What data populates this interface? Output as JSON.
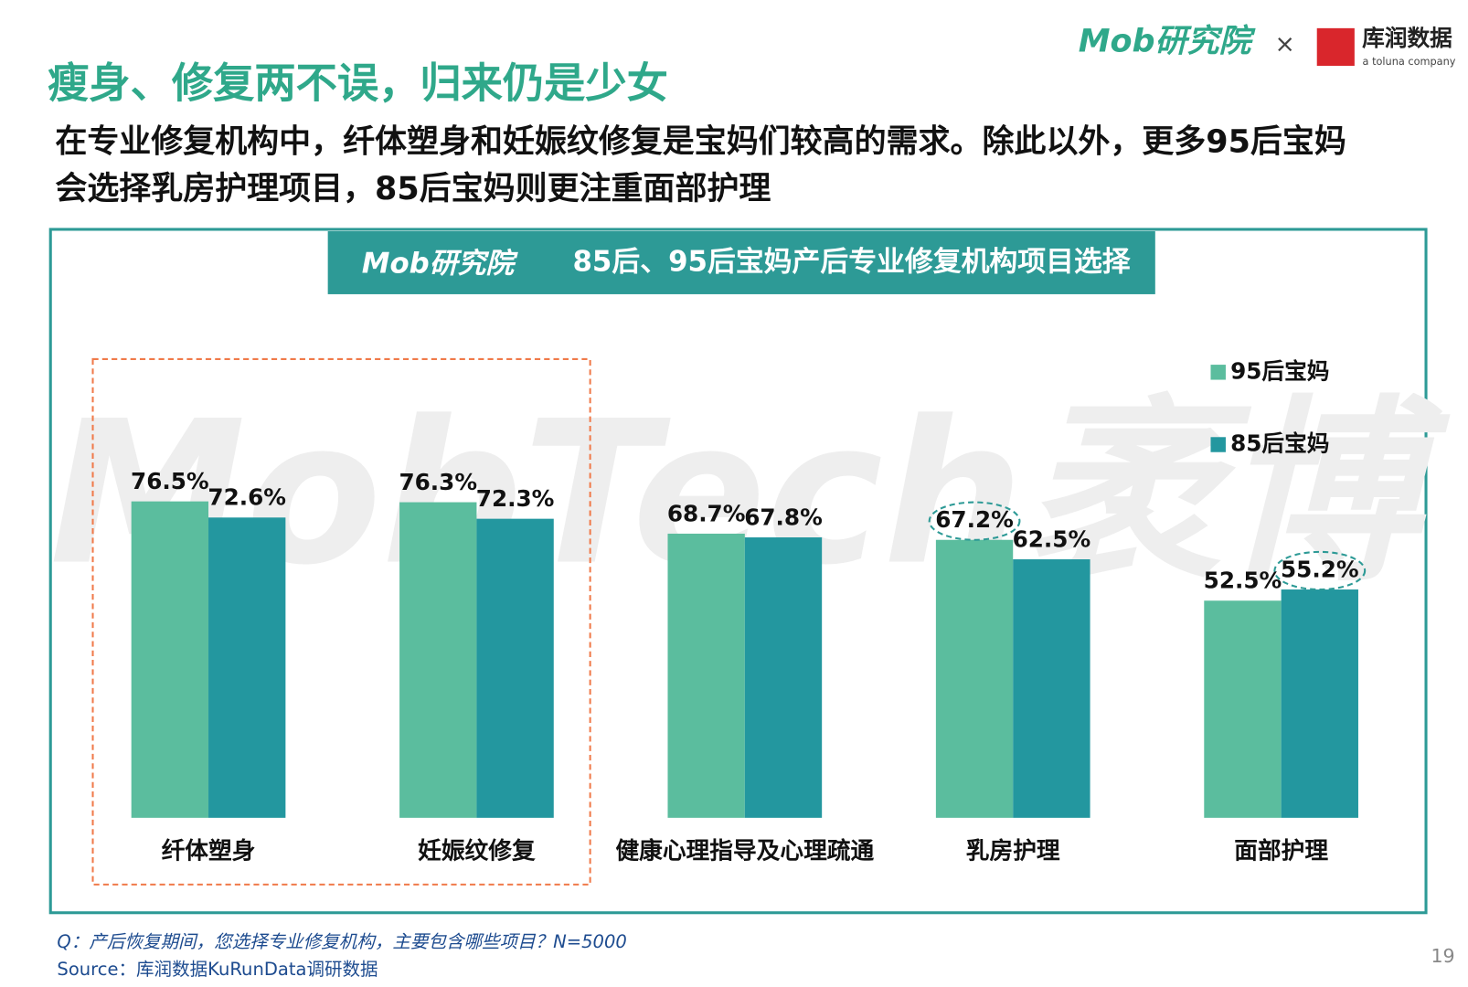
{
  "header": {
    "title": "瘦身、修复两不误，归来仍是少女",
    "subtitle_lines": [
      "在专业修复机构中，纤体塑身和妊娠纹修复是宝妈们较高的需求。除此以外，更多95后宝妈",
      "会选择乳房护理项目，85后宝妈则更注重面部护理"
    ],
    "logo_left": "Mob研究院",
    "logo_sep": "×",
    "logo_right": "库润数据",
    "logo_right_sub": "a toluna company"
  },
  "chart_data": {
    "type": "bar",
    "brand": "Mob研究院",
    "title": "85后、95后宝妈产后专业修复机构项目选择",
    "watermark": "MobTech袤博",
    "categories": [
      "纤体塑身",
      "妊娠纹修复",
      "健康心理指导及心理疏通",
      "乳房护理",
      "面部护理"
    ],
    "series": [
      {
        "name": "95后宝妈",
        "color": "#5bbd9e",
        "values": [
          76.5,
          76.3,
          68.7,
          67.2,
          52.5
        ],
        "value_labels": [
          "76.5%",
          "76.3%",
          "68.7%",
          "67.2%",
          "52.5%"
        ]
      },
      {
        "name": "85后宝妈",
        "color": "#23979f",
        "values": [
          72.6,
          72.3,
          67.8,
          62.5,
          55.2
        ],
        "value_labels": [
          "72.6%",
          "72.3%",
          "67.8%",
          "62.5%",
          "55.2%"
        ]
      }
    ]
  },
  "footer": {
    "question": "Q：产后恢复期间，您选择专业修复机构，主要包含哪些项目？N=5000",
    "source": "Source：库润数据KuRunData调研数据",
    "page": "19"
  }
}
